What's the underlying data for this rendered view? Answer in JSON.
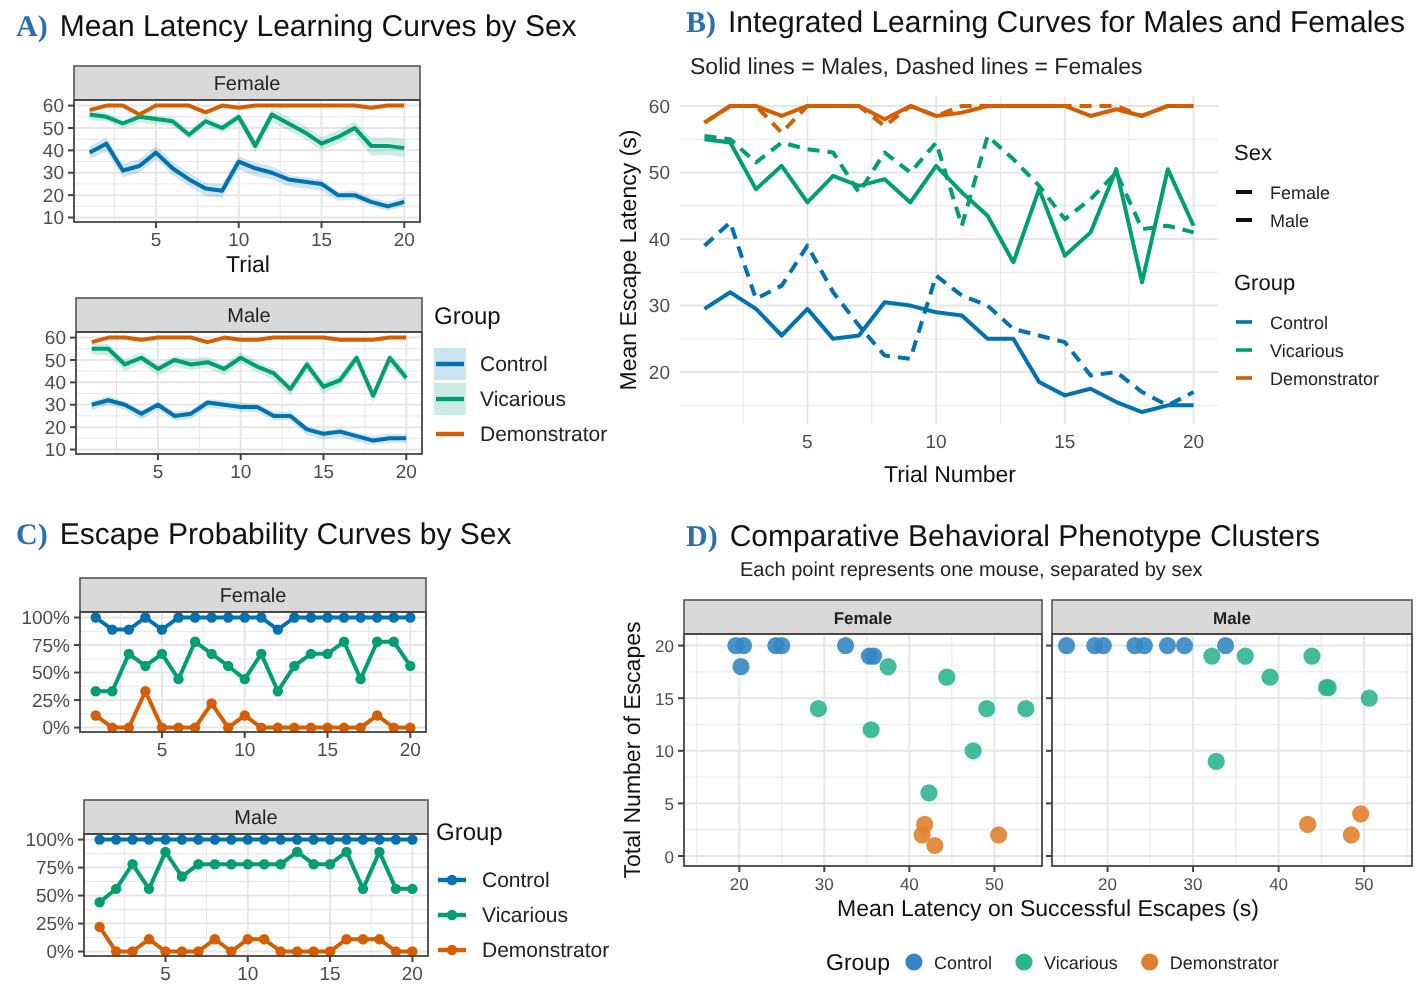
{
  "chart_data": [
    {
      "type": "line",
      "title": "A) Mean Latency Learning Curves by Sex",
      "xlabel": "Trial",
      "annotations": [
        "Female"
      ],
      "grid": true,
      "x": [
        1,
        2,
        3,
        4,
        5,
        6,
        7,
        8,
        9,
        10,
        11,
        12,
        13,
        14,
        15,
        16,
        17,
        18,
        19,
        20
      ],
      "xlim": [
        0.05,
        20.95
      ],
      "ylim": [
        8,
        62.5
      ],
      "xticks": [
        {
          "value": 2.5,
          "label": null
        },
        5,
        {
          "value": 7.5,
          "label": null
        },
        10,
        {
          "value": 12.5,
          "label": null
        },
        15,
        {
          "value": 17.5,
          "label": null
        },
        20
      ],
      "yticks": [
        10,
        {
          "value": 15,
          "label": null
        },
        20,
        {
          "value": 25,
          "label": null
        },
        30,
        {
          "value": 35,
          "label": null
        },
        40,
        {
          "value": 45,
          "label": null
        },
        50,
        {
          "value": 55,
          "label": null
        },
        60
      ],
      "series": [
        {
          "color": "#0072b2",
          "values": [
            39,
            43,
            31,
            33,
            39,
            32,
            27,
            23,
            22,
            35,
            32,
            30,
            27,
            26,
            25,
            20,
            20,
            17,
            15,
            17
          ],
          "lower": [
            36,
            39.5,
            28,
            30,
            36,
            29,
            24,
            19.5,
            19,
            31.5,
            28.5,
            27,
            24,
            23,
            22,
            17.5,
            18,
            15,
            13,
            15
          ],
          "upper": [
            42,
            45.5,
            34,
            36,
            42,
            35,
            30,
            25.5,
            25,
            37.5,
            34.5,
            33,
            29,
            28,
            27,
            21.5,
            22,
            19,
            17,
            19
          ]
        },
        {
          "color": "#009e73",
          "values": [
            56,
            55,
            52,
            55,
            54,
            53,
            47,
            53,
            50,
            55,
            42,
            56,
            52,
            48,
            43,
            46,
            50,
            42,
            42,
            41
          ],
          "lower": [
            53.5,
            53,
            49.5,
            52.5,
            51.5,
            51,
            45,
            51,
            48,
            52.5,
            39,
            52.5,
            49,
            45,
            40,
            43,
            47,
            37.5,
            38,
            37
          ],
          "upper": [
            57.5,
            57,
            53.5,
            56.5,
            55.5,
            55,
            49,
            55,
            52,
            56.5,
            45,
            58.5,
            55,
            51,
            46,
            49,
            53,
            45.5,
            46,
            45
          ]
        },
        {
          "color": "#d55e00",
          "values": [
            58,
            60,
            60,
            56,
            60,
            60,
            60,
            57,
            60,
            59,
            60,
            60,
            60,
            60,
            60,
            60,
            60,
            59,
            60,
            60
          ]
        }
      ]
    },
    {
      "type": "line",
      "annotations": [
        "Male"
      ],
      "grid": true,
      "legend": "right",
      "legend_title": "Group",
      "x": [
        1,
        2,
        3,
        4,
        5,
        6,
        7,
        8,
        9,
        10,
        11,
        12,
        13,
        14,
        15,
        16,
        17,
        18,
        19,
        20
      ],
      "xlim": [
        0.05,
        20.95
      ],
      "ylim": [
        8,
        62.5
      ],
      "xticks": [
        {
          "value": 2.5,
          "label": null
        },
        5,
        {
          "value": 7.5,
          "label": null
        },
        10,
        {
          "value": 12.5,
          "label": null
        },
        15,
        {
          "value": 17.5,
          "label": null
        },
        20
      ],
      "yticks": [
        10,
        {
          "value": 15,
          "label": null
        },
        20,
        {
          "value": 25,
          "label": null
        },
        30,
        {
          "value": 35,
          "label": null
        },
        40,
        {
          "value": 45,
          "label": null
        },
        50,
        {
          "value": 55,
          "label": null
        },
        60
      ],
      "series": [
        {
          "name": "Control",
          "color": "#0072b2",
          "values": [
            30,
            32,
            30,
            26,
            30,
            25,
            26,
            31,
            30,
            29,
            29,
            25,
            25,
            19,
            17,
            18,
            16,
            14,
            15,
            15
          ],
          "lower": [
            27.5,
            30,
            27.5,
            23.5,
            27.5,
            23,
            23.5,
            28.5,
            28,
            27,
            26.5,
            23,
            23,
            16.5,
            14.5,
            15.5,
            13.5,
            12,
            13,
            13
          ],
          "upper": [
            31.5,
            34,
            31.5,
            27.5,
            31.5,
            27,
            27.5,
            32.5,
            32,
            31,
            30.5,
            27,
            27,
            20.5,
            18.5,
            19.5,
            17.5,
            16,
            17,
            17
          ]
        },
        {
          "name": "Vicarious",
          "color": "#009e73",
          "values": [
            55,
            55,
            48,
            51,
            46,
            50,
            48,
            49,
            46,
            51,
            47,
            44,
            37,
            48,
            38,
            41,
            51,
            34,
            51,
            42
          ],
          "lower": [
            52.5,
            52,
            45,
            48.5,
            43,
            47,
            45.5,
            46.5,
            43,
            48.5,
            44.5,
            41,
            34,
            45,
            35,
            38.5,
            48,
            31,
            48,
            39.5
          ],
          "upper": [
            57.5,
            57,
            50,
            53.5,
            48,
            52,
            50.5,
            51.5,
            48,
            53.5,
            49.5,
            46,
            39,
            50,
            40,
            43.5,
            53,
            36,
            53,
            44.5
          ]
        },
        {
          "name": "Demonstrator",
          "color": "#d55e00",
          "values": [
            58,
            60,
            60,
            59,
            60,
            60,
            60,
            58,
            60,
            59,
            59,
            60,
            60,
            60,
            60,
            59,
            59,
            59,
            60,
            60
          ]
        }
      ]
    },
    {
      "type": "line",
      "title": "B) Integrated Learning Curves for Males and Females",
      "subtitle": "Solid lines = Males, Dashed lines = Females",
      "xlabel": "Trial Number",
      "ylabel": "Mean Escape Latency (s)",
      "legend_title": "Group",
      "legend": "right",
      "annotations": [
        "Sex",
        "Female",
        "Male"
      ],
      "grid": true,
      "x": [
        1,
        2,
        3,
        4,
        5,
        6,
        7,
        8,
        9,
        10,
        11,
        12,
        13,
        14,
        15,
        16,
        17,
        18,
        19,
        20
      ],
      "xlim": [
        0.05,
        20.95
      ],
      "ylim": [
        12.2,
        61.5
      ],
      "xticks": [
        {
          "value": 2.5,
          "label": null
        },
        5,
        {
          "value": 7.5,
          "label": null
        },
        10,
        {
          "value": 12.5,
          "label": null
        },
        15,
        {
          "value": 17.5,
          "label": null
        },
        20
      ],
      "yticks": [
        {
          "value": 15,
          "label": null
        },
        20,
        {
          "value": 25,
          "label": null
        },
        30,
        {
          "value": 35,
          "label": null
        },
        40,
        {
          "value": 45,
          "label": null
        },
        50,
        {
          "value": 55,
          "label": null
        },
        60
      ],
      "series": [
        {
          "color": "#0072b2",
          "line_style": "dashed",
          "values": [
            39,
            42.5,
            31,
            33,
            39,
            32,
            27,
            22.5,
            22,
            34.5,
            31.5,
            30,
            26.5,
            25.5,
            24.5,
            19.5,
            20,
            17,
            15,
            17
          ]
        },
        {
          "color": "#009e73",
          "line_style": "dashed",
          "values": [
            55.5,
            55,
            51.5,
            54.5,
            53.5,
            53,
            47,
            53,
            50,
            54.5,
            42,
            55.5,
            52,
            48,
            43,
            46,
            50,
            41.5,
            42,
            41
          ]
        },
        {
          "color": "#d55e00",
          "line_style": "dashed",
          "values": [
            57.5,
            60,
            60,
            56,
            60,
            60,
            60,
            57,
            60,
            58.5,
            60,
            60,
            60,
            60,
            60,
            60,
            60,
            58.5,
            60,
            60
          ]
        },
        {
          "name": "Control",
          "color": "#0072b2",
          "line_style": "solid",
          "values": [
            29.5,
            32,
            29.5,
            25.5,
            29.5,
            25,
            25.5,
            30.5,
            30,
            29,
            28.5,
            25,
            25,
            18.5,
            16.5,
            17.5,
            15.5,
            14,
            15,
            15
          ]
        },
        {
          "name": "Vicarious",
          "color": "#009e73",
          "line_style": "solid",
          "values": [
            55,
            54.5,
            47.5,
            51,
            45.5,
            49.5,
            48,
            49,
            45.5,
            51,
            47,
            43.5,
            36.5,
            47.5,
            37.5,
            41,
            50.5,
            33.5,
            50.5,
            42
          ]
        },
        {
          "name": "Demonstrator",
          "color": "#d55e00",
          "line_style": "solid",
          "values": [
            57.5,
            60,
            60,
            58.5,
            60,
            60,
            60,
            58,
            60,
            58.5,
            59,
            60,
            60,
            60,
            60,
            58.5,
            59.5,
            58.5,
            60,
            60
          ]
        }
      ]
    },
    {
      "type": "line",
      "title": "C) Escape Probability Curves by Sex",
      "annotations": [
        "Female"
      ],
      "grid": true,
      "marker": "circle",
      "x": [
        1,
        2,
        3,
        4,
        5,
        6,
        7,
        8,
        9,
        10,
        11,
        12,
        13,
        14,
        15,
        16,
        17,
        18,
        19,
        20
      ],
      "xlim": [
        0.05,
        20.95
      ],
      "ylim": [
        -4,
        105
      ],
      "xticks": [
        {
          "value": 2.5,
          "label": null
        },
        5,
        {
          "value": 7.5,
          "label": null
        },
        10,
        {
          "value": 12.5,
          "label": null
        },
        15,
        {
          "value": 17.5,
          "label": null
        },
        20
      ],
      "yticks": [
        {
          "value": 0,
          "label": "0%"
        },
        {
          "value": 12.5,
          "label": null
        },
        {
          "value": 25,
          "label": "25%"
        },
        {
          "value": 37.5,
          "label": null
        },
        {
          "value": 50,
          "label": "50%"
        },
        {
          "value": 62.5,
          "label": null
        },
        {
          "value": 75,
          "label": "75%"
        },
        {
          "value": 87.5,
          "label": null
        },
        {
          "value": 100,
          "label": "100%"
        }
      ],
      "series": [
        {
          "color": "#0072b2",
          "values": [
            100,
            89,
            89,
            100,
            89,
            100,
            100,
            100,
            100,
            100,
            100,
            89,
            100,
            100,
            100,
            100,
            100,
            100,
            100,
            100
          ]
        },
        {
          "color": "#009e73",
          "values": [
            33,
            33,
            67,
            56,
            67,
            44,
            78,
            67,
            56,
            44,
            67,
            33,
            56,
            67,
            67,
            78,
            44,
            78,
            78,
            56
          ]
        },
        {
          "color": "#d55e00",
          "values": [
            11,
            0,
            0,
            33,
            0,
            0,
            0,
            22,
            0,
            11,
            0,
            0,
            0,
            0,
            0,
            0,
            0,
            11,
            0,
            0
          ]
        }
      ]
    },
    {
      "type": "line",
      "annotations": [
        "Male"
      ],
      "grid": true,
      "marker": "circle",
      "legend": "right",
      "legend_title": "Group",
      "x": [
        1,
        2,
        3,
        4,
        5,
        6,
        7,
        8,
        9,
        10,
        11,
        12,
        13,
        14,
        15,
        16,
        17,
        18,
        19,
        20
      ],
      "xlim": [
        0.05,
        20.95
      ],
      "ylim": [
        -4,
        105
      ],
      "xticks": [
        {
          "value": 2.5,
          "label": null
        },
        5,
        {
          "value": 7.5,
          "label": null
        },
        10,
        {
          "value": 12.5,
          "label": null
        },
        15,
        {
          "value": 17.5,
          "label": null
        },
        20
      ],
      "yticks": [
        {
          "value": 0,
          "label": "0%"
        },
        {
          "value": 12.5,
          "label": null
        },
        {
          "value": 25,
          "label": "25%"
        },
        {
          "value": 37.5,
          "label": null
        },
        {
          "value": 50,
          "label": "50%"
        },
        {
          "value": 62.5,
          "label": null
        },
        {
          "value": 75,
          "label": "75%"
        },
        {
          "value": 87.5,
          "label": null
        },
        {
          "value": 100,
          "label": "100%"
        }
      ],
      "series": [
        {
          "name": "Control",
          "color": "#0072b2",
          "values": [
            100,
            100,
            100,
            100,
            100,
            100,
            100,
            100,
            100,
            100,
            100,
            100,
            100,
            100,
            100,
            100,
            100,
            100,
            100,
            100
          ]
        },
        {
          "name": "Vicarious",
          "color": "#009e73",
          "values": [
            44,
            56,
            78,
            56,
            89,
            67,
            78,
            78,
            78,
            78,
            78,
            78,
            89,
            78,
            78,
            89,
            56,
            89,
            56,
            56
          ]
        },
        {
          "name": "Demonstrator",
          "color": "#d55e00",
          "values": [
            22,
            0,
            0,
            11,
            0,
            0,
            0,
            11,
            0,
            11,
            11,
            0,
            0,
            0,
            0,
            11,
            11,
            11,
            0,
            0
          ]
        }
      ]
    },
    {
      "type": "scatter",
      "title": "D) Comparative Behavioral Phenotype Clusters",
      "subtitle": "Each point represents one mouse, separated by sex",
      "xlabel": "Mean Latency on Successful Escapes (s)",
      "ylabel": "Total Number of Escapes",
      "annotations": [
        "Female"
      ],
      "grid": true,
      "marker": "circle",
      "xlim": [
        13.5,
        55.6
      ],
      "ylim": [
        -0.95,
        21.1
      ],
      "xticks": [
        {
          "value": 15,
          "label": null
        },
        20,
        {
          "value": 25,
          "label": null
        },
        30,
        {
          "value": 35,
          "label": null
        },
        40,
        {
          "value": 45,
          "label": null
        },
        50,
        {
          "value": 55,
          "label": null
        }
      ],
      "yticks": [
        0,
        {
          "value": 2.5,
          "label": null
        },
        5,
        {
          "value": 7.5,
          "label": null
        },
        10,
        {
          "value": 12.5,
          "label": null
        },
        15,
        {
          "value": 17.5,
          "label": null
        },
        20
      ],
      "series": [
        {
          "color": "#3487c4",
          "x": [
            19.6,
            20.5,
            20.2,
            24.3,
            25,
            32.5,
            35.3,
            35.8
          ],
          "values": [
            20,
            20,
            18,
            20,
            20,
            20,
            19,
            19
          ]
        },
        {
          "color": "#2db58f",
          "x": [
            37.5,
            44.4,
            29.3,
            49.1,
            53.7,
            35.5,
            47.5,
            42.3
          ],
          "values": [
            18,
            17,
            14,
            14,
            14,
            12,
            10,
            6
          ]
        },
        {
          "color": "#e07f2f",
          "x": [
            41.8,
            41.5,
            43,
            50.5
          ],
          "values": [
            3,
            2,
            1,
            2
          ]
        }
      ]
    },
    {
      "type": "scatter",
      "annotations": [
        "Male"
      ],
      "grid": true,
      "marker": "circle",
      "legend": "bottom",
      "legend_title": "Group",
      "tick_labels": "x",
      "xlim": [
        13.5,
        55.6
      ],
      "ylim": [
        -0.95,
        21.1
      ],
      "xticks": [
        {
          "value": 15,
          "label": null
        },
        20,
        {
          "value": 25,
          "label": null
        },
        30,
        {
          "value": 35,
          "label": null
        },
        40,
        {
          "value": 45,
          "label": null
        },
        50,
        {
          "value": 55,
          "label": null
        }
      ],
      "yticks": [
        0,
        {
          "value": 2.5,
          "label": null
        },
        5,
        {
          "value": 7.5,
          "label": null
        },
        10,
        {
          "value": 12.5,
          "label": null
        },
        15,
        {
          "value": 17.5,
          "label": null
        },
        20
      ],
      "series": [
        {
          "name": "Control",
          "color": "#3487c4",
          "x": [
            15.2,
            18.5,
            19.5,
            23.2,
            24.3,
            27,
            29,
            33.8
          ],
          "values": [
            20,
            20,
            20,
            20,
            20,
            20,
            20,
            20
          ]
        },
        {
          "name": "Vicarious",
          "color": "#2db58f",
          "x": [
            32.2,
            36.1,
            39,
            43.9,
            45.6,
            45.8,
            50.6,
            32.7
          ],
          "values": [
            19,
            19,
            17,
            19,
            16,
            16,
            15,
            9
          ]
        },
        {
          "name": "Demonstrator",
          "color": "#e07f2f",
          "x": [
            43.4,
            48.5,
            49.6
          ],
          "values": [
            3,
            2,
            4
          ]
        }
      ]
    }
  ]
}
